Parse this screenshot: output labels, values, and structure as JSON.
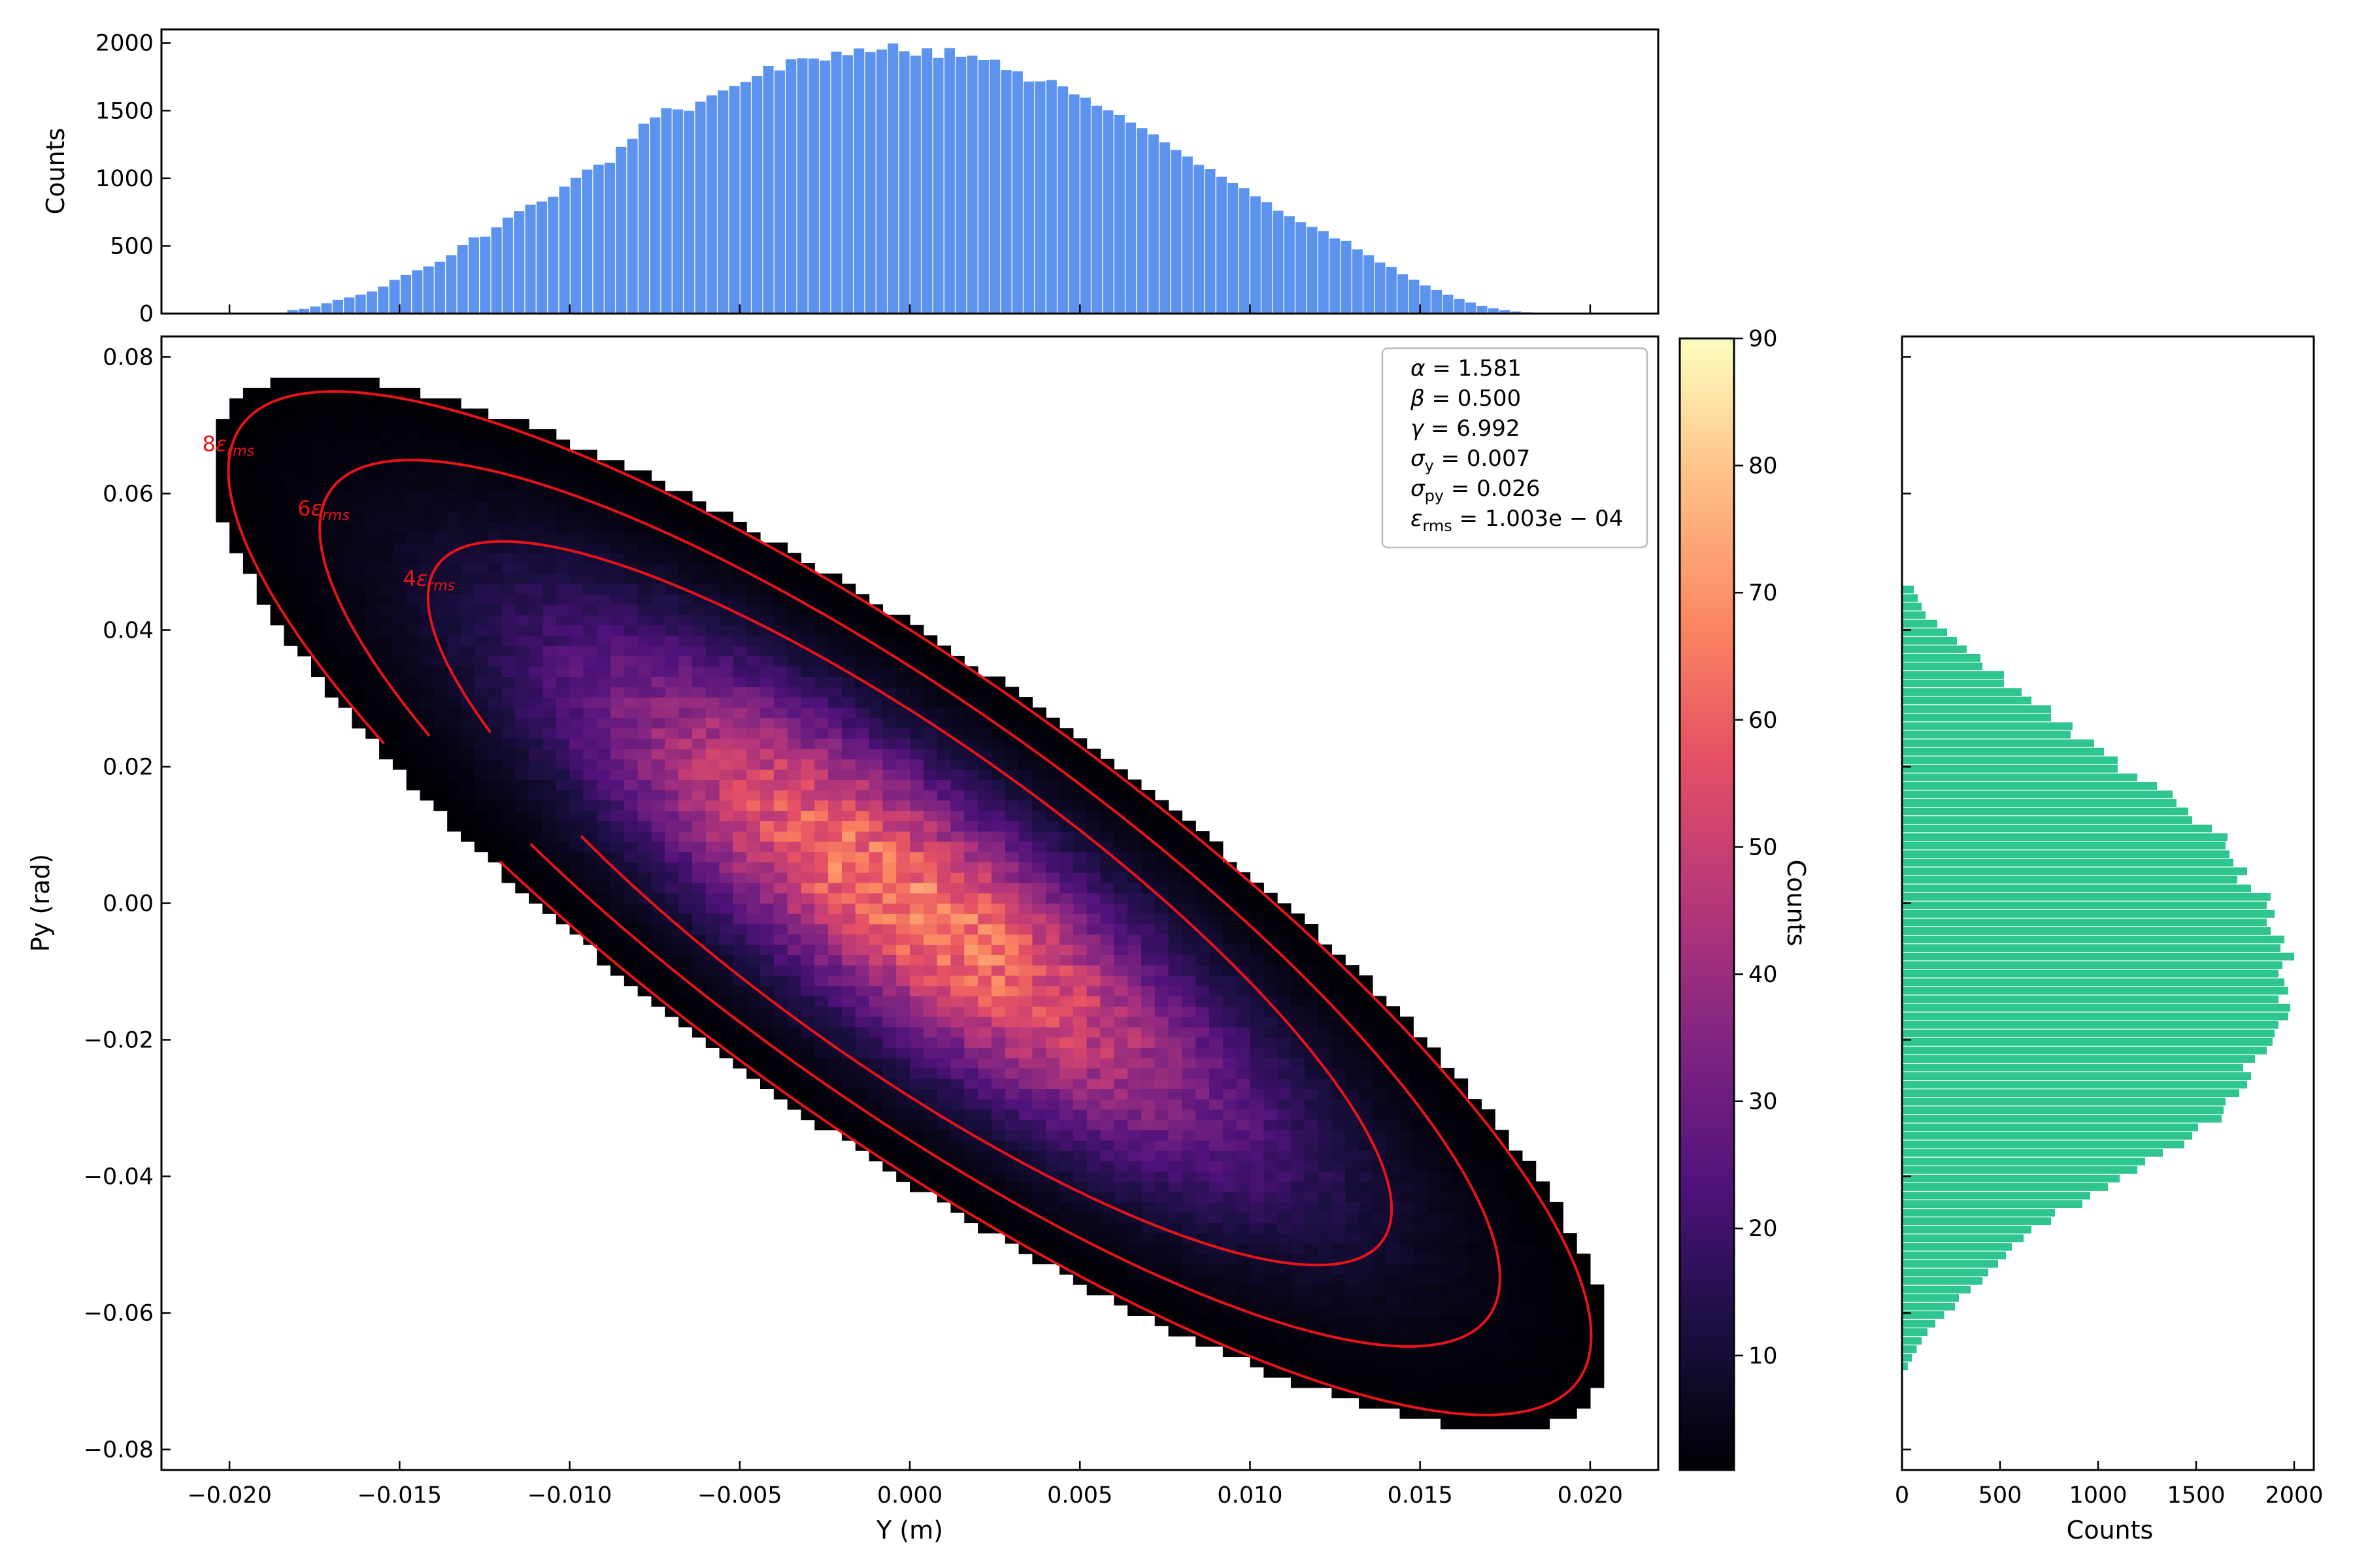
{
  "chart_data": [
    {
      "id": "phase-space",
      "type": "heatmap",
      "xlabel": "Y (m)",
      "ylabel": "Py (rad)",
      "xlim": [
        -0.022,
        0.022
      ],
      "ylim": [
        -0.083,
        0.083
      ],
      "xticks": [
        -0.02,
        -0.015,
        -0.01,
        -0.005,
        0.0,
        0.005,
        0.01,
        0.015,
        0.02
      ],
      "xtick_labels": [
        "−0.020",
        "−0.015",
        "−0.010",
        "−0.005",
        "0.000",
        "0.005",
        "0.010",
        "0.015",
        "0.020"
      ],
      "yticks": [
        -0.08,
        -0.06,
        -0.04,
        -0.02,
        0.0,
        0.02,
        0.04,
        0.06,
        0.08
      ],
      "ytick_labels": [
        "−0.08",
        "−0.06",
        "−0.04",
        "−0.02",
        "0.00",
        "0.02",
        "0.04",
        "0.06",
        "0.08"
      ],
      "bins": [
        110,
        110
      ],
      "colormap": "magma",
      "colorbar": {
        "label": "Counts",
        "range": [
          1,
          90
        ],
        "ticks": [
          10,
          20,
          30,
          40,
          50,
          60,
          70,
          80,
          90
        ],
        "tick_labels": [
          "10",
          "20",
          "30",
          "40",
          "50",
          "60",
          "70",
          "80",
          "90"
        ]
      },
      "twiss": {
        "alpha": 1.581,
        "beta": 0.5,
        "gamma": 6.992,
        "emittance_rms": 0.0001003
      },
      "ellipses": [
        {
          "label": "8εrms",
          "label_parts": [
            "8",
            "ε",
            "rms"
          ],
          "multiple": 8,
          "color": "#e8141b"
        },
        {
          "label": "6εrms",
          "label_parts": [
            "6",
            "ε",
            "rms"
          ],
          "multiple": 6,
          "color": "#e8141b"
        },
        {
          "label": "4εrms",
          "label_parts": [
            "4",
            "ε",
            "rms"
          ],
          "multiple": 4,
          "color": "#e8141b"
        }
      ],
      "legend": {
        "position": "top-right",
        "entries": [
          {
            "sym": "α",
            "sub": "",
            "eq": " = 1.581"
          },
          {
            "sym": "β",
            "sub": "",
            "eq": " = 0.500"
          },
          {
            "sym": "γ",
            "sub": "",
            "eq": " = 6.992"
          },
          {
            "sym": "σ",
            "sub": "y",
            "eq": " = 0.007"
          },
          {
            "sym": "σ",
            "sub": "py",
            "eq": " = 0.026"
          },
          {
            "sym": "ε",
            "sub": "rms",
            "eq": " = 1.003e − 04"
          }
        ]
      }
    },
    {
      "id": "y-histogram",
      "type": "bar",
      "orientation": "vertical",
      "ylabel": "Counts",
      "ylim": [
        0,
        2100
      ],
      "yticks": [
        0,
        500,
        1000,
        1500,
        2000
      ],
      "ytick_labels": [
        "0",
        "500",
        "1000",
        "1500",
        "2000"
      ],
      "color": "#5b93ef",
      "bin_start": -0.0183,
      "bin_width": 0.000333,
      "values": [
        26,
        35,
        52,
        76,
        102,
        119,
        140,
        163,
        200,
        249,
        285,
        321,
        349,
        383,
        432,
        507,
        563,
        568,
        637,
        709,
        757,
        804,
        828,
        864,
        939,
        1004,
        1064,
        1101,
        1115,
        1232,
        1291,
        1403,
        1450,
        1518,
        1509,
        1498,
        1566,
        1612,
        1649,
        1681,
        1712,
        1757,
        1830,
        1797,
        1880,
        1886,
        1885,
        1870,
        1936,
        1910,
        1959,
        1932,
        1952,
        1996,
        1939,
        1906,
        1960,
        1889,
        1962,
        1898,
        1906,
        1873,
        1876,
        1800,
        1790,
        1715,
        1716,
        1726,
        1679,
        1620,
        1595,
        1536,
        1502,
        1468,
        1412,
        1370,
        1325,
        1266,
        1209,
        1161,
        1100,
        1067,
        1011,
        966,
        926,
        867,
        824,
        760,
        719,
        675,
        641,
        609,
        556,
        537,
        475,
        432,
        378,
        343,
        291,
        251,
        208,
        174,
        140,
        108,
        82,
        58,
        39,
        26,
        16,
        9
      ]
    },
    {
      "id": "py-histogram",
      "type": "bar",
      "orientation": "horizontal",
      "xlabel": "Counts",
      "xlim": [
        0,
        2100
      ],
      "xticks": [
        0,
        500,
        1000,
        1500,
        2000
      ],
      "xtick_labels": [
        "0",
        "500",
        "1000",
        "1500",
        "2000"
      ],
      "color": "#2fc58e",
      "bin_start": -0.0685,
      "bin_width": 0.00125,
      "values": [
        30,
        50,
        75,
        100,
        130,
        170,
        215,
        270,
        290,
        350,
        410,
        440,
        490,
        530,
        560,
        620,
        660,
        760,
        780,
        920,
        960,
        1050,
        1110,
        1200,
        1240,
        1330,
        1440,
        1480,
        1510,
        1630,
        1640,
        1650,
        1720,
        1760,
        1780,
        1740,
        1800,
        1860,
        1890,
        1900,
        1920,
        1970,
        1980,
        1920,
        1970,
        1950,
        1920,
        1940,
        2000,
        1930,
        1950,
        1880,
        1860,
        1900,
        1860,
        1880,
        1780,
        1710,
        1760,
        1690,
        1670,
        1650,
        1660,
        1580,
        1480,
        1460,
        1400,
        1380,
        1300,
        1200,
        1100,
        1100,
        1030,
        980,
        860,
        870,
        760,
        760,
        660,
        610,
        520,
        520,
        410,
        400,
        330,
        280,
        230,
        180,
        120,
        100,
        80,
        60
      ]
    }
  ]
}
